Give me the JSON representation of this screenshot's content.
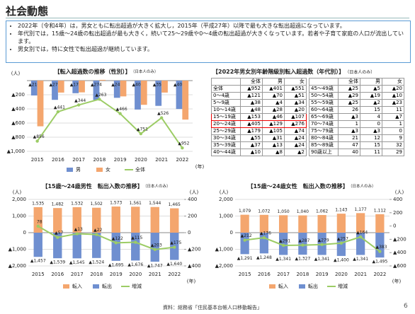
{
  "header": {
    "title": "社会動態",
    "bullets": [
      "2022年（令和4年）は，男女ともに転出超過が大きく拡大し，2015年（平成27年）以降で最も大きな転出超過になっています。",
      "年代別では，15歳～24歳の転出超過が最も大きく，続いて25～29歳や0～4歳の転出超過が大きくなっています。若者や子育て家庭の人口が流出しています。",
      "男女別では，特に女性で転出超過が継続しています。"
    ]
  },
  "chart_data": [
    {
      "type": "bar",
      "title": "【転入超過数の推移（性別）】",
      "note": "（日本人のみ）",
      "y_label": "(人)",
      "x_label": "(年)",
      "bar_layout": "group",
      "categories": [
        "2015",
        "2016",
        "2017",
        "2018",
        "2019",
        "2020",
        "2021",
        "2022"
      ],
      "ylim": [
        -1000,
        0
      ],
      "yticks": [
        {
          "value": -200,
          "label": "▲200"
        },
        {
          "value": -400,
          "label": "▲400"
        },
        {
          "value": -600,
          "label": "▲600"
        },
        {
          "value": -800,
          "label": "▲800"
        },
        {
          "value": -1000,
          "label": "▲1,000"
        }
      ],
      "series": [
        {
          "name": "男",
          "color": "#6f8fd0",
          "values": [
            -210,
            -272,
            -178,
            -274,
            -243,
            -409,
            -357,
            -401
          ],
          "value_labels": [
            "▲210",
            "▲272",
            "▲178",
            "▲274",
            "▲243",
            "▲409",
            "▲357",
            "▲401"
          ]
        },
        {
          "name": "女",
          "color": "#f4a66e",
          "values": [
            -646,
            -169,
            -166,
            11,
            -223,
            -342,
            -169,
            -551
          ]
        },
        {
          "name": "全体",
          "color": "#9ccc65",
          "type": "line",
          "values": [
            -856,
            -441,
            -344,
            -263,
            -466,
            -751,
            -526,
            -952
          ],
          "value_labels": [
            "▲856",
            "▲441",
            "▲344",
            "▲263",
            "▲466",
            "▲751",
            "▲526",
            "▲952"
          ]
        }
      ]
    },
    {
      "type": "bar",
      "title": "【15歳～24歳男性　転出入数の推移】",
      "note": "（日本人のみ）",
      "y_label": "(人)",
      "y2_label": "(人)",
      "x_label": "(年)",
      "bar_layout": "overlay",
      "categories": [
        "2015",
        "2016",
        "2017",
        "2018",
        "2019",
        "2020",
        "2021",
        "2022"
      ],
      "ylim": [
        -2000,
        2000
      ],
      "yticks": [
        {
          "value": 2000,
          "label": "2,000"
        },
        {
          "value": 1000,
          "label": "1,000"
        },
        0,
        {
          "value": -1000,
          "label": "▲1,000"
        },
        {
          "value": -2000,
          "label": "▲2,000"
        }
      ],
      "y2lim": [
        -400,
        400
      ],
      "y2ticks": [
        400,
        200,
        0,
        {
          "value": -200,
          "label": "▲200"
        },
        {
          "value": -400,
          "label": "▲400"
        }
      ],
      "series": [
        {
          "name": "転入",
          "color": "#f4a66e",
          "values": [
            1535,
            1482,
            1532,
            1502,
            1573,
            1561,
            1544,
            1465
          ],
          "value_labels": [
            "1,535",
            "1,482",
            "1,532",
            "1,502",
            "1,573",
            "1,561",
            "1,544",
            "1,465"
          ]
        },
        {
          "name": "転出",
          "color": "#6f8fd0",
          "values": [
            -1457,
            -1539,
            -1545,
            -1524,
            -1695,
            -1676,
            -1747,
            -1640
          ],
          "value_labels": [
            "▲1,457",
            "▲1,539",
            "▲1,545",
            "▲1,524",
            "▲1,695",
            "▲1,676",
            "▲1,747",
            "▲1,640"
          ]
        },
        {
          "name": "増減",
          "color": "#9ccc65",
          "type": "line",
          "axis": "y2",
          "values": [
            78,
            -57,
            -13,
            -22,
            -122,
            -115,
            -203,
            -175
          ],
          "value_labels": [
            "78",
            "▲57",
            "▲13",
            "▲22",
            "▲122",
            "▲115",
            "▲203",
            "▲175"
          ]
        }
      ]
    },
    {
      "type": "bar",
      "title": "【15歳～24歳女性　転出入数の推移】",
      "note": "（日本人のみ）",
      "y_label": "(人)",
      "y2_label": "(人)",
      "x_label": "(年)",
      "bar_layout": "overlay",
      "categories": [
        "2015",
        "2016",
        "2017",
        "2018",
        "2019",
        "2020",
        "2021",
        "2022"
      ],
      "ylim": [
        -2000,
        2000
      ],
      "yticks": [
        {
          "value": 2000,
          "label": "2,000"
        },
        {
          "value": 1000,
          "label": "1,000"
        },
        0,
        {
          "value": -1000,
          "label": "▲1,000"
        },
        {
          "value": -2000,
          "label": "▲2,000"
        }
      ],
      "y2lim": [
        -600,
        400
      ],
      "y2ticks": [
        400,
        200,
        0,
        {
          "value": -200,
          "label": "▲200"
        },
        {
          "value": -400,
          "label": "▲400"
        },
        {
          "value": -600,
          "label": "▲600"
        }
      ],
      "series": [
        {
          "name": "転入",
          "color": "#f4a66e",
          "values": [
            1079,
            1072,
            1050,
            1040,
            1062,
            1143,
            1177,
            1112
          ],
          "value_labels": [
            "1,079",
            "1,072",
            "1,050",
            "1,040",
            "1,062",
            "1,143",
            "1,177",
            "1,112"
          ]
        },
        {
          "name": "転出",
          "color": "#6f8fd0",
          "values": [
            -1291,
            -1248,
            -1341,
            -1327,
            -1341,
            -1400,
            -1341,
            -1495
          ],
          "value_labels": [
            "▲1,291",
            "▲1,248",
            "▲1,341",
            "▲1,327",
            "▲1,341",
            "▲1,400",
            "▲1,341",
            "▲1,495"
          ]
        },
        {
          "name": "増減",
          "color": "#9ccc65",
          "type": "line",
          "axis": "y2",
          "values": [
            -212,
            -176,
            -291,
            -287,
            -279,
            -257,
            -164,
            -383
          ],
          "value_labels": [
            "▲212",
            "▲176",
            "▲291",
            "▲287",
            "▲279",
            "▲257",
            "▲164",
            "▲383"
          ]
        }
      ]
    }
  ],
  "table": {
    "title": "【2022年男女別年齢階級別転入超過数（年代別）】",
    "note": "（日本人のみ）",
    "header": [
      "",
      "全体",
      "男",
      "女"
    ],
    "left_rows": [
      [
        "全体",
        "▲952",
        "▲401",
        "▲551"
      ],
      [
        "0～4歳",
        "▲121",
        "▲70",
        "▲51"
      ],
      [
        "5～9歳",
        "▲38",
        "▲4",
        "▲34"
      ],
      [
        "10～14歳",
        "▲48",
        "▲28",
        "▲20"
      ],
      [
        "15～19歳",
        "▲153",
        "▲46",
        "▲107"
      ],
      [
        "20～24歳",
        "▲405",
        "▲129",
        "▲276"
      ],
      [
        "25～29歳",
        "▲179",
        "▲105",
        "▲74"
      ],
      [
        "30～34歳",
        "▲55",
        "▲31",
        "▲24"
      ],
      [
        "35～39歳",
        "▲37",
        "▲13",
        "▲24"
      ],
      [
        "40～44歳",
        "▲10",
        "▲8",
        "▲2"
      ]
    ],
    "right_rows": [
      [
        "45～49歳",
        "▲25",
        "▲5",
        "▲20"
      ],
      [
        "50～54歳",
        "▲29",
        "▲19",
        "▲10"
      ],
      [
        "55～59歳",
        "▲25",
        "▲2",
        "▲23"
      ],
      [
        "60～64歳",
        "26",
        "15",
        "11"
      ],
      [
        "65～69歳",
        "▲3",
        "4",
        "▲7"
      ],
      [
        "70～74歳",
        "1",
        "0",
        "1"
      ],
      [
        "75～79歳",
        "▲3",
        "▲3",
        "0"
      ],
      [
        "80～84歳",
        "21",
        "12",
        "9"
      ],
      [
        "85～89歳",
        "47",
        "15",
        "32"
      ],
      [
        "90歳以上",
        "40",
        "11",
        "29"
      ]
    ]
  },
  "footer": {
    "source": "資料：総務省「住民基本台帳人口移動報告」",
    "page": "6"
  }
}
